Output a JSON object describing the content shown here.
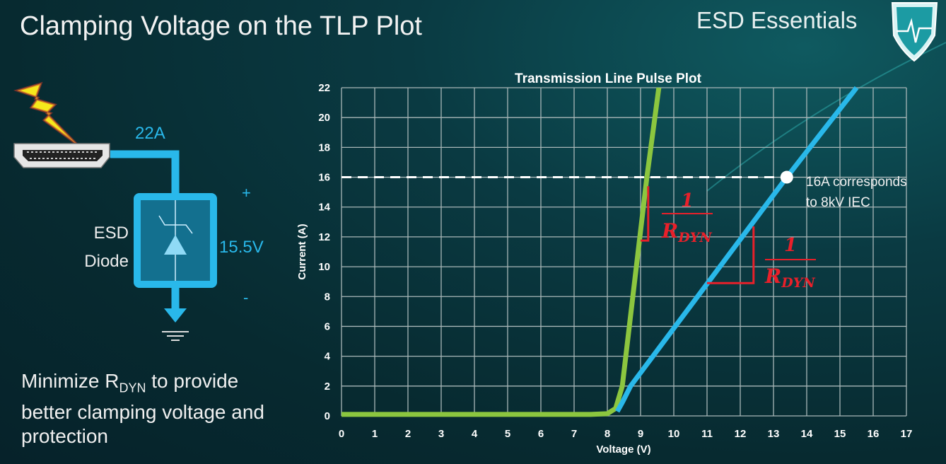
{
  "slide": {
    "title": "Clamping Voltage on the TLP Plot",
    "brand": "ESD Essentials",
    "bottom_text_pre": "Minimize R",
    "bottom_text_sub": "DYN",
    "bottom_text_post": " to provide better clamping voltage and protection"
  },
  "circuit": {
    "current_label": "22A",
    "device_label_1": "ESD",
    "device_label_2": "Diode",
    "voltage_label": "15.5V",
    "plus": "+",
    "minus": "-",
    "icons": [
      "lightning-icon",
      "hdmi-connector-icon",
      "tvs-diode-icon",
      "ground-icon",
      "shield-heartbeat-logo"
    ]
  },
  "chart_data": {
    "type": "line",
    "title": "Transmission Line Pulse Plot",
    "xlabel": "Voltage (V)",
    "ylabel": "Current (A)",
    "xlim": [
      0,
      17
    ],
    "ylim": [
      0,
      22
    ],
    "xticks": [
      0,
      1,
      2,
      3,
      4,
      5,
      6,
      7,
      8,
      9,
      10,
      11,
      12,
      13,
      14,
      15,
      16,
      17
    ],
    "yticks": [
      0,
      2,
      4,
      6,
      8,
      10,
      12,
      14,
      16,
      18,
      20,
      22
    ],
    "grid": true,
    "series": [
      {
        "color": "#8cc63f",
        "x": [
          0,
          7.5,
          8.0,
          8.25,
          8.45,
          9.19,
          9.55
        ],
        "y": [
          0.1,
          0.1,
          0.15,
          0.5,
          2,
          16,
          22
        ]
      },
      {
        "color": "#29b8ea",
        "x": [
          8.3,
          8.45,
          8.7,
          13.4,
          15.5
        ],
        "y": [
          0.3,
          0.9,
          2,
          16,
          22
        ]
      }
    ],
    "reference_line": {
      "y": 16,
      "x_end": 13.4,
      "style": "dashed",
      "color": "#ffffff"
    },
    "marker": {
      "x": 13.4,
      "y": 16
    },
    "annotation": {
      "line1": "16A corresponds",
      "line2": "to 8kV IEC"
    },
    "slope_markers": [
      {
        "color": "#e8202a",
        "v_x": 9.23,
        "y_top": 15.4,
        "y_bottom": 11.75,
        "h_x_start": 9.0,
        "numerator": "1",
        "denominator": "R",
        "denominator_sub": "DYN"
      },
      {
        "color": "#e8202a",
        "v_x": 12.4,
        "y_top": 12.7,
        "y_bottom": 8.9,
        "h_x_start": 11.0,
        "numerator": "1",
        "denominator": "R",
        "denominator_sub": "DYN"
      }
    ]
  }
}
